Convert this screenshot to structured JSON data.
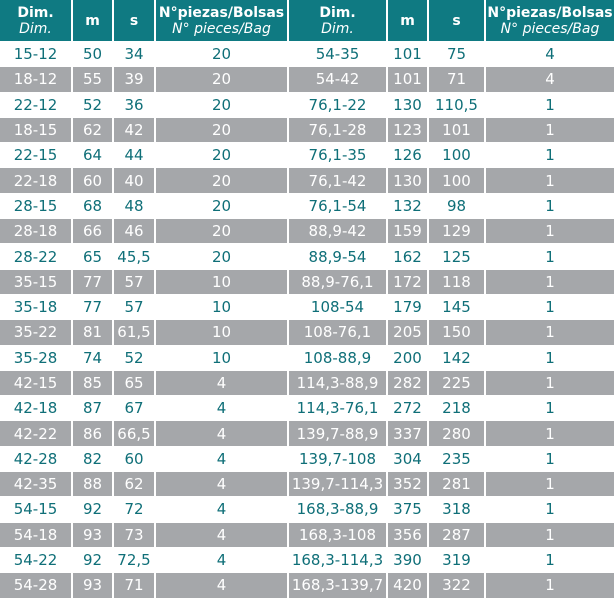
{
  "table": {
    "header": [
      {
        "main": "Dim.",
        "sub": "Dim."
      },
      {
        "main": "m"
      },
      {
        "main": "s"
      },
      {
        "main": "N°piezas/Bolsas",
        "sub": "N° pieces/Bag"
      },
      {
        "main": "Dim.",
        "sub": "Dim."
      },
      {
        "main": "m"
      },
      {
        "main": "s"
      },
      {
        "main": "N°piezas/Bolsas",
        "sub": "N° pieces/Bag"
      }
    ],
    "rows": [
      [
        "15-12",
        "50",
        "34",
        "20",
        "54-35",
        "101",
        "75",
        "4"
      ],
      [
        "18-12",
        "55",
        "39",
        "20",
        "54-42",
        "101",
        "71",
        "4"
      ],
      [
        "22-12",
        "52",
        "36",
        "20",
        "76,1-22",
        "130",
        "110,5",
        "1"
      ],
      [
        "18-15",
        "62",
        "42",
        "20",
        "76,1-28",
        "123",
        "101",
        "1"
      ],
      [
        "22-15",
        "64",
        "44",
        "20",
        "76,1-35",
        "126",
        "100",
        "1"
      ],
      [
        "22-18",
        "60",
        "40",
        "20",
        "76,1-42",
        "130",
        "100",
        "1"
      ],
      [
        "28-15",
        "68",
        "48",
        "20",
        "76,1-54",
        "132",
        "98",
        "1"
      ],
      [
        "28-18",
        "66",
        "46",
        "20",
        "88,9-42",
        "159",
        "129",
        "1"
      ],
      [
        "28-22",
        "65",
        "45,5",
        "20",
        "88,9-54",
        "162",
        "125",
        "1"
      ],
      [
        "35-15",
        "77",
        "57",
        "10",
        "88,9-76,1",
        "172",
        "118",
        "1"
      ],
      [
        "35-18",
        "77",
        "57",
        "10",
        "108-54",
        "179",
        "145",
        "1"
      ],
      [
        "35-22",
        "81",
        "61,5",
        "10",
        "108-76,1",
        "205",
        "150",
        "1"
      ],
      [
        "35-28",
        "74",
        "52",
        "10",
        "108-88,9",
        "200",
        "142",
        "1"
      ],
      [
        "42-15",
        "85",
        "65",
        "4",
        "114,3-88,9",
        "282",
        "225",
        "1"
      ],
      [
        "42-18",
        "87",
        "67",
        "4",
        "114,3-76,1",
        "272",
        "218",
        "1"
      ],
      [
        "42-22",
        "86",
        "66,5",
        "4",
        "139,7-88,9",
        "337",
        "280",
        "1"
      ],
      [
        "42-28",
        "82",
        "60",
        "4",
        "139,7-108",
        "304",
        "235",
        "1"
      ],
      [
        "42-35",
        "88",
        "62",
        "4",
        "139,7-114,3",
        "352",
        "281",
        "1"
      ],
      [
        "54-15",
        "92",
        "72",
        "4",
        "168,3-88,9",
        "375",
        "318",
        "1"
      ],
      [
        "54-18",
        "93",
        "73",
        "4",
        "168,3-108",
        "356",
        "287",
        "1"
      ],
      [
        "54-22",
        "92",
        "72,5",
        "4",
        "168,3-114,3",
        "390",
        "319",
        "1"
      ],
      [
        "54-28",
        "93",
        "71",
        "4",
        "168,3-139,7",
        "420",
        "322",
        "1"
      ]
    ]
  }
}
